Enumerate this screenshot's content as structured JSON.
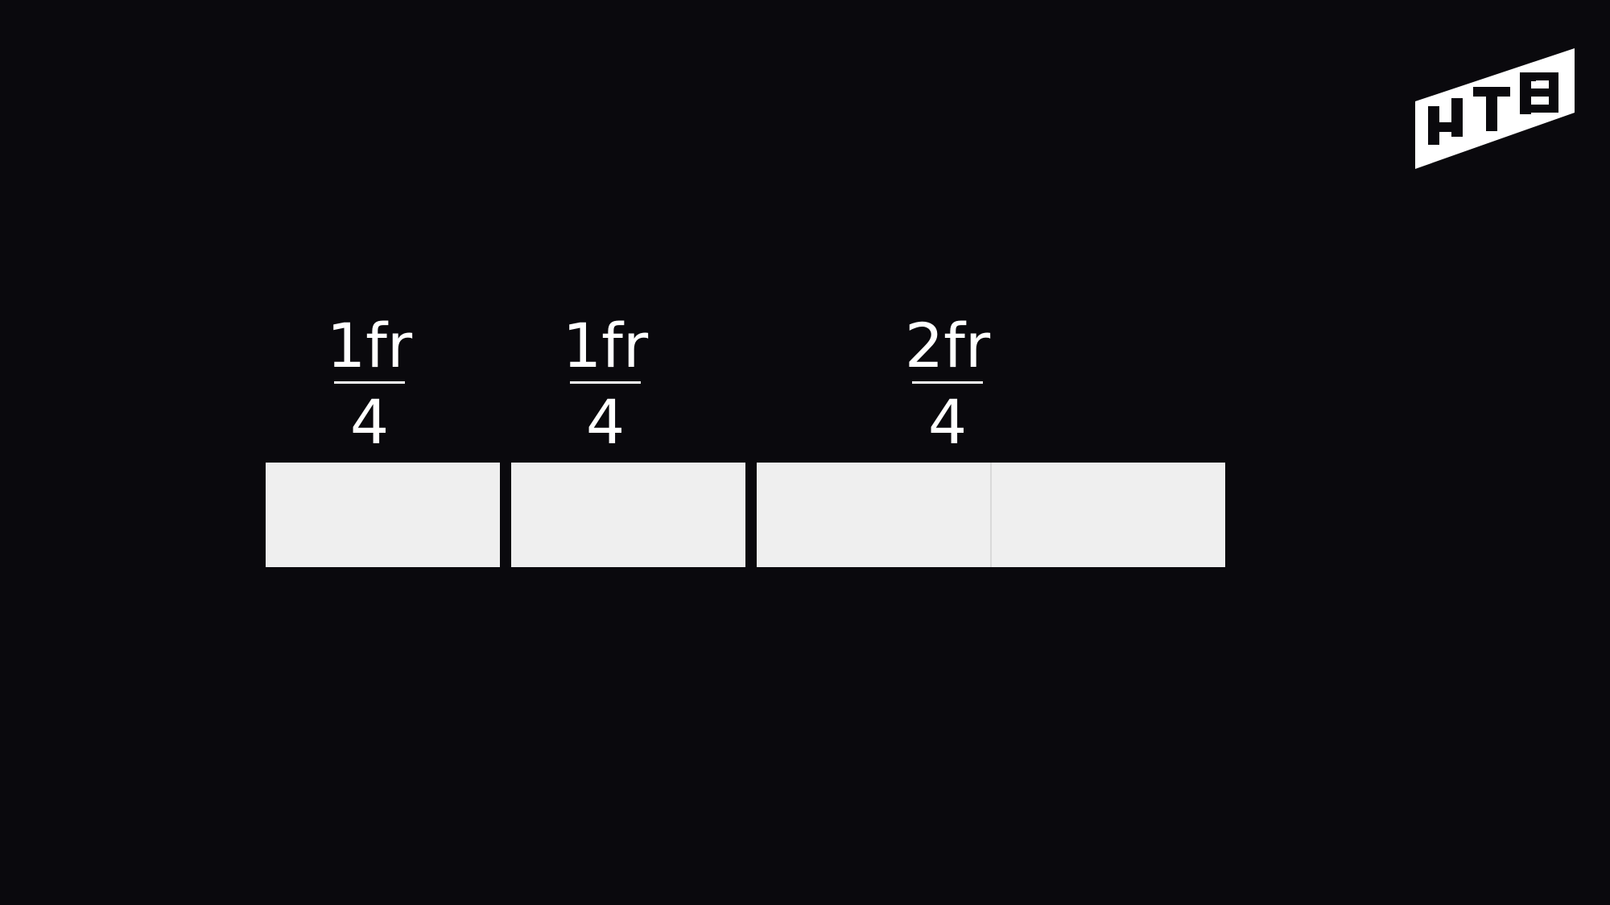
{
  "logo": {
    "text": "HTB",
    "color": "#ffffff"
  },
  "columns": [
    {
      "numerator": "1fr",
      "denominator": "4",
      "fraction": 0.25,
      "units": 1
    },
    {
      "numerator": "1fr",
      "denominator": "4",
      "fraction": 0.25,
      "units": 1
    },
    {
      "numerator": "2fr",
      "denominator": "4",
      "fraction": 0.5,
      "units": 2
    }
  ],
  "colors": {
    "background": "#0a090d",
    "box": "#efefef",
    "text": "#ffffff"
  }
}
